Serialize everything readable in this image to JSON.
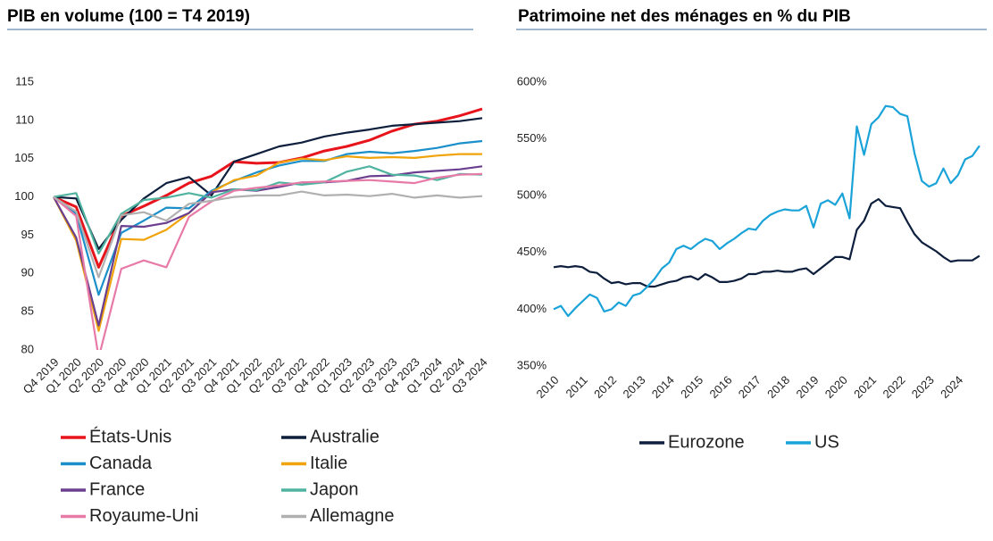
{
  "chart_data": [
    {
      "type": "line",
      "title": "PIB en volume (100 = T4 2019)",
      "categories": [
        "Q4 2019",
        "Q1 2020",
        "Q2 2020",
        "Q3 2020",
        "Q4 2020",
        "Q1 2021",
        "Q2 2021",
        "Q3 2021",
        "Q4 2021",
        "Q1 2022",
        "Q2 2022",
        "Q3 2022",
        "Q4 2022",
        "Q1 2023",
        "Q2 2023",
        "Q3 2023",
        "Q4 2023",
        "Q1 2024",
        "Q2 2024",
        "Q3 2024"
      ],
      "ylim": [
        80,
        115
      ],
      "yticks": [
        80,
        85,
        90,
        95,
        100,
        105,
        110,
        115
      ],
      "grid": false,
      "legend": "bottom",
      "series": [
        {
          "name": "États-Unis",
          "color": "#e8141b",
          "values": [
            100,
            98.7,
            90.8,
            97.5,
            98.8,
            100.2,
            101.8,
            102.7,
            104.6,
            104.4,
            104.5,
            105.1,
            106.0,
            106.6,
            107.4,
            108.6,
            109.5,
            109.9,
            110.6,
            111.5
          ]
        },
        {
          "name": "Australie",
          "color": "#0d1f3c",
          "values": [
            100,
            99.8,
            93.2,
            97.0,
            99.8,
            101.8,
            102.6,
            100.2,
            104.6,
            105.6,
            106.6,
            107.1,
            107.9,
            108.4,
            108.8,
            109.3,
            109.5,
            109.7,
            109.9,
            110.3
          ]
        },
        {
          "name": "Canada",
          "color": "#1a8fc9",
          "values": [
            100,
            97.8,
            87.2,
            95.3,
            96.9,
            98.6,
            98.5,
            100.8,
            102.1,
            103.2,
            104.1,
            104.7,
            104.7,
            105.6,
            105.9,
            105.7,
            106.0,
            106.4,
            107.0,
            107.3
          ]
        },
        {
          "name": "Italie",
          "color": "#f0a30a",
          "values": [
            100,
            94.3,
            82.5,
            94.5,
            94.4,
            95.7,
            97.9,
            100.6,
            102.2,
            102.8,
            104.5,
            105.0,
            104.8,
            105.3,
            105.1,
            105.2,
            105.1,
            105.4,
            105.6,
            105.6
          ]
        },
        {
          "name": "France",
          "color": "#6b3f8f",
          "values": [
            100,
            94.7,
            83.2,
            96.2,
            96.1,
            96.6,
            97.9,
            100.6,
            101.0,
            100.8,
            101.3,
            101.9,
            101.9,
            102.1,
            102.7,
            102.8,
            103.2,
            103.4,
            103.6,
            104.0
          ]
        },
        {
          "name": "Japon",
          "color": "#4fb3a0",
          "values": [
            100,
            100.5,
            92.6,
            97.8,
            99.6,
            99.9,
            100.5,
            99.9,
            101.0,
            100.9,
            101.9,
            101.6,
            101.9,
            103.3,
            104.0,
            102.9,
            102.8,
            102.2,
            103.0,
            102.9
          ]
        },
        {
          "name": "Royaume-Uni",
          "color": "#e87aa8",
          "values": [
            100,
            97.5,
            79.0,
            90.6,
            91.7,
            90.8,
            97.4,
            99.4,
            100.8,
            101.2,
            101.5,
            101.9,
            102.0,
            102.1,
            102.2,
            102.0,
            101.8,
            102.5,
            102.9,
            103.0
          ]
        },
        {
          "name": "Allemagne",
          "color": "#b0b0b0",
          "values": [
            100,
            98.1,
            89.5,
            97.6,
            98.0,
            96.9,
            99.1,
            99.5,
            100.0,
            100.2,
            100.2,
            100.7,
            100.2,
            100.3,
            100.1,
            100.4,
            99.9,
            100.2,
            99.9,
            100.1
          ]
        }
      ]
    },
    {
      "type": "line",
      "title": "Patrimoine net des ménages en % du PIB",
      "x": [
        2010,
        2010.25,
        2010.5,
        2010.75,
        2011,
        2011.25,
        2011.5,
        2011.75,
        2012,
        2012.25,
        2012.5,
        2012.75,
        2013,
        2013.25,
        2013.5,
        2013.75,
        2014,
        2014.25,
        2014.5,
        2014.75,
        2015,
        2015.25,
        2015.5,
        2015.75,
        2016,
        2016.25,
        2016.5,
        2016.75,
        2017,
        2017.25,
        2017.5,
        2017.75,
        2018,
        2018.25,
        2018.5,
        2018.75,
        2019,
        2019.25,
        2019.5,
        2019.75,
        2020,
        2020.25,
        2020.5,
        2020.75,
        2021,
        2021.25,
        2021.5,
        2021.75,
        2022,
        2022.25,
        2022.5,
        2022.75,
        2023,
        2023.25,
        2023.5,
        2023.75,
        2024,
        2024.25,
        2024.5,
        2024.75
      ],
      "xlim": [
        2010,
        2025
      ],
      "xticks": [
        2010,
        2011,
        2012,
        2013,
        2014,
        2015,
        2016,
        2017,
        2018,
        2019,
        2020,
        2021,
        2022,
        2023,
        2024
      ],
      "ylim": [
        350,
        600
      ],
      "yticks": [
        {
          "value": 350,
          "label": "350%"
        },
        {
          "value": 400,
          "label": "400%"
        },
        {
          "value": 450,
          "label": "450%"
        },
        {
          "value": 500,
          "label": "500%"
        },
        {
          "value": 550,
          "label": "550%"
        },
        {
          "value": 600,
          "label": "600%"
        }
      ],
      "grid": false,
      "legend": "bottom",
      "series": [
        {
          "name": "Eurozone",
          "color": "#0d1f3c",
          "values": [
            437,
            438,
            437,
            438,
            437,
            433,
            432,
            427,
            423,
            424,
            422,
            423,
            423,
            420,
            420,
            422,
            424,
            425,
            428,
            429,
            426,
            431,
            428,
            424,
            424,
            425,
            427,
            431,
            431,
            433,
            433,
            434,
            433,
            433,
            435,
            436,
            431,
            436,
            441,
            446,
            446,
            444,
            470,
            478,
            493,
            497,
            491,
            490,
            489,
            477,
            466,
            459,
            455,
            451,
            446,
            442,
            443,
            443,
            443,
            447
          ]
        },
        {
          "name": "US",
          "color": "#1aa3d9",
          "values": [
            400,
            403,
            394,
            401,
            407,
            413,
            410,
            398,
            400,
            406,
            403,
            412,
            414,
            420,
            427,
            436,
            441,
            453,
            456,
            453,
            458,
            462,
            460,
            453,
            458,
            462,
            467,
            471,
            470,
            478,
            483,
            486,
            488,
            487,
            487,
            491,
            472,
            493,
            496,
            492,
            502,
            480,
            561,
            536,
            563,
            569,
            579,
            578,
            572,
            570,
            537,
            513,
            508,
            511,
            524,
            511,
            518,
            532,
            535,
            544
          ]
        }
      ]
    }
  ]
}
